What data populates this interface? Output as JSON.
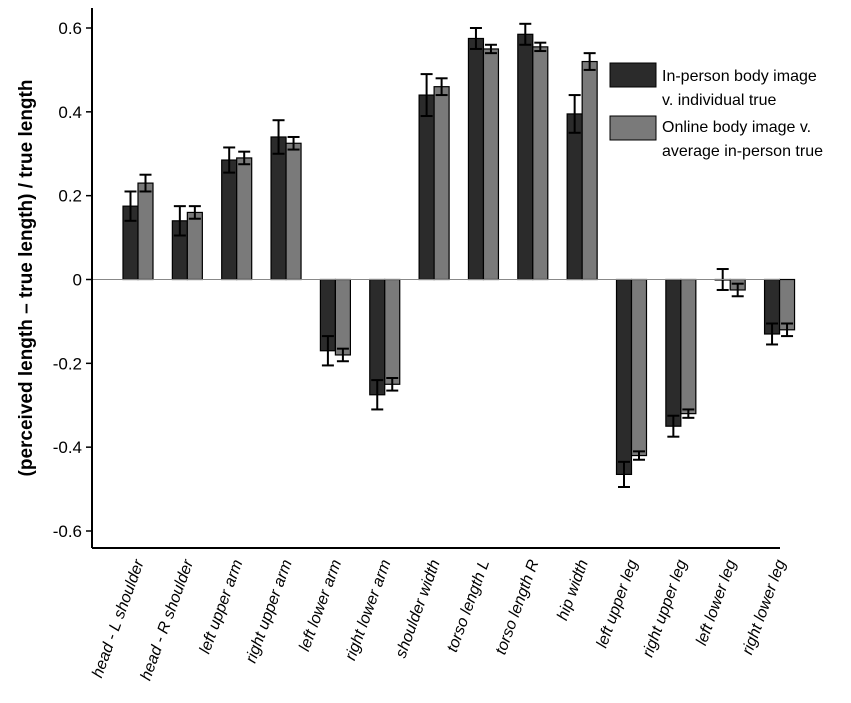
{
  "chart_data": {
    "type": "bar",
    "title": "",
    "xlabel": "",
    "ylabel": "(perceived length – true length) / true length",
    "ylim": [
      -0.6,
      0.6
    ],
    "yticks": [
      -0.6,
      -0.4,
      -0.2,
      0,
      0.2,
      0.4,
      0.6
    ],
    "ytick_labels": [
      "-0.6",
      "-0.4",
      "-0.2",
      "0",
      "0.2",
      "0.4",
      "0.6"
    ],
    "grid": false,
    "legend_position": "top-right",
    "categories": [
      "head - L shoulder",
      "head - R shoulder",
      "left upper arm",
      "right upper arm",
      "left lower arm",
      "right lower arm",
      "shoulder width",
      "torso length L",
      "torso length R",
      "hip width",
      "left upper leg",
      "right upper leg",
      "left lower leg",
      "right lower leg"
    ],
    "series": [
      {
        "name": "In-person body image v. individual true",
        "color": "#2b2b2b",
        "values": [
          0.175,
          0.14,
          0.285,
          0.34,
          -0.17,
          -0.275,
          0.44,
          0.575,
          0.585,
          0.395,
          -0.465,
          -0.35,
          0.0,
          -0.13
        ],
        "errors": [
          0.035,
          0.035,
          0.03,
          0.04,
          0.035,
          0.035,
          0.05,
          0.025,
          0.025,
          0.045,
          0.03,
          0.025,
          0.025,
          0.025
        ]
      },
      {
        "name": "Online body image v. average in-person true",
        "color": "#7a7a7a",
        "values": [
          0.23,
          0.16,
          0.29,
          0.325,
          -0.18,
          -0.25,
          0.46,
          0.55,
          0.555,
          0.52,
          -0.42,
          -0.32,
          -0.025,
          -0.12
        ],
        "errors": [
          0.02,
          0.015,
          0.015,
          0.015,
          0.015,
          0.015,
          0.02,
          0.01,
          0.01,
          0.02,
          0.01,
          0.01,
          0.015,
          0.015
        ]
      }
    ]
  }
}
